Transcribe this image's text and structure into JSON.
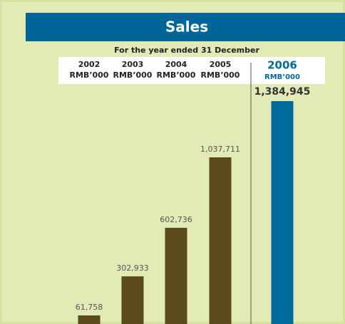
{
  "chart_data": {
    "type": "bar",
    "title": "Sales",
    "subtitle": "For the year ended 31 December",
    "categories": [
      "2002",
      "2003",
      "2004",
      "2005",
      "2006"
    ],
    "units": [
      "RMB’000",
      "RMB’000",
      "RMB’000",
      "RMB’000",
      "RMB’000"
    ],
    "values": [
      61758,
      302933,
      602736,
      1037711,
      1384945
    ],
    "value_labels": [
      "61,758",
      "302,933",
      "602,736",
      "1,037,711",
      "1,384,945"
    ],
    "colors": [
      "#5a4a1c",
      "#5a4a1c",
      "#5a4a1c",
      "#5a4a1c",
      "#006a9b"
    ]
  }
}
